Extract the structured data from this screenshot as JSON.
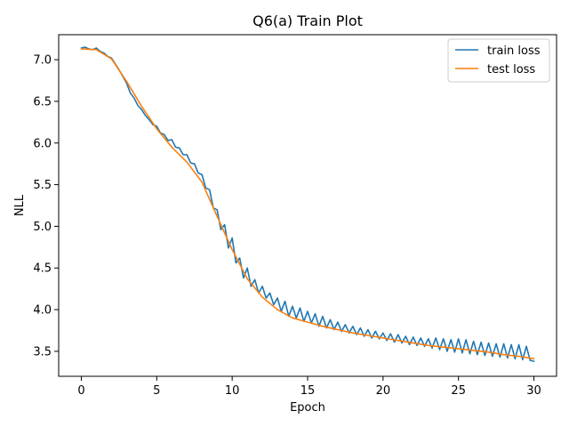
{
  "chart_data": {
    "type": "line",
    "title": "Q6(a) Train Plot",
    "xlabel": "Epoch",
    "ylabel": "NLL",
    "xlim": [
      -1.5,
      31.5
    ],
    "ylim": [
      3.2,
      7.3
    ],
    "xticks": [
      0,
      5,
      10,
      15,
      20,
      25,
      30
    ],
    "yticks": [
      3.5,
      4.0,
      4.5,
      5.0,
      5.5,
      6.0,
      6.5,
      7.0
    ],
    "xtick_labels": [
      "0",
      "5",
      "10",
      "15",
      "20",
      "25",
      "30"
    ],
    "ytick_labels": [
      "3.5",
      "4.0",
      "4.5",
      "5.0",
      "5.5",
      "6.0",
      "6.5",
      "7.0"
    ],
    "grid": false,
    "legend": "top-right",
    "series": [
      {
        "name": "train loss",
        "color": "#1f77b4",
        "x": [
          0,
          0.25,
          0.5,
          0.75,
          1.0,
          1.25,
          1.5,
          1.75,
          2.0,
          2.25,
          2.5,
          2.75,
          3.0,
          3.25,
          3.5,
          3.75,
          4.0,
          4.25,
          4.5,
          4.75,
          5.0,
          5.25,
          5.5,
          5.75,
          6.0,
          6.25,
          6.5,
          6.75,
          7.0,
          7.25,
          7.5,
          7.75,
          8.0,
          8.25,
          8.5,
          8.75,
          9.0,
          9.25,
          9.5,
          9.75,
          10.0,
          10.25,
          10.5,
          10.75,
          11.0,
          11.25,
          11.5,
          11.75,
          12.0,
          12.25,
          12.5,
          12.75,
          13.0,
          13.25,
          13.5,
          13.75,
          14.0,
          14.25,
          14.5,
          14.75,
          15.0,
          15.25,
          15.5,
          15.75,
          16.0,
          16.25,
          16.5,
          16.75,
          17.0,
          17.25,
          17.5,
          17.75,
          18.0,
          18.25,
          18.5,
          18.75,
          19.0,
          19.25,
          19.5,
          19.75,
          20.0,
          20.25,
          20.5,
          20.75,
          21.0,
          21.25,
          21.5,
          21.75,
          22.0,
          22.25,
          22.5,
          22.75,
          23.0,
          23.25,
          23.5,
          23.75,
          24.0,
          24.25,
          24.5,
          24.75,
          25.0,
          25.25,
          25.5,
          25.75,
          26.0,
          26.25,
          26.5,
          26.75,
          27.0,
          27.25,
          27.5,
          27.75,
          28.0,
          28.25,
          28.5,
          28.75,
          29.0,
          29.25,
          29.5,
          29.75,
          30.0
        ],
        "values": [
          7.14,
          7.15,
          7.13,
          7.12,
          7.14,
          7.1,
          7.08,
          7.04,
          7.02,
          6.95,
          6.88,
          6.8,
          6.72,
          6.6,
          6.54,
          6.45,
          6.4,
          6.33,
          6.28,
          6.22,
          6.2,
          6.12,
          6.1,
          6.03,
          6.04,
          5.95,
          5.94,
          5.86,
          5.86,
          5.76,
          5.75,
          5.64,
          5.62,
          5.46,
          5.44,
          5.22,
          5.2,
          4.96,
          5.02,
          4.74,
          4.86,
          4.56,
          4.62,
          4.38,
          4.5,
          4.28,
          4.36,
          4.2,
          4.28,
          4.14,
          4.2,
          4.06,
          4.14,
          3.98,
          4.1,
          3.92,
          4.04,
          3.9,
          4.02,
          3.86,
          3.98,
          3.84,
          3.95,
          3.8,
          3.92,
          3.78,
          3.88,
          3.76,
          3.85,
          3.74,
          3.82,
          3.72,
          3.8,
          3.7,
          3.78,
          3.68,
          3.76,
          3.66,
          3.74,
          3.65,
          3.72,
          3.63,
          3.71,
          3.61,
          3.7,
          3.6,
          3.68,
          3.58,
          3.67,
          3.57,
          3.66,
          3.56,
          3.65,
          3.54,
          3.66,
          3.52,
          3.65,
          3.5,
          3.64,
          3.49,
          3.65,
          3.48,
          3.64,
          3.47,
          3.62,
          3.46,
          3.61,
          3.45,
          3.6,
          3.44,
          3.59,
          3.43,
          3.59,
          3.42,
          3.58,
          3.41,
          3.58,
          3.4,
          3.56,
          3.39,
          3.38
        ]
      },
      {
        "name": "test loss",
        "color": "#ff7f0e",
        "x": [
          0,
          1,
          2,
          3,
          4,
          5,
          6,
          7,
          8,
          9,
          10,
          11,
          12,
          13,
          14,
          15,
          16,
          17,
          18,
          19,
          20,
          21,
          22,
          23,
          24,
          25,
          26,
          27,
          28,
          29,
          30
        ],
        "values": [
          7.13,
          7.12,
          7.01,
          6.74,
          6.44,
          6.17,
          5.95,
          5.77,
          5.53,
          5.12,
          4.72,
          4.37,
          4.15,
          4.0,
          3.9,
          3.85,
          3.8,
          3.76,
          3.72,
          3.69,
          3.66,
          3.63,
          3.6,
          3.57,
          3.55,
          3.53,
          3.51,
          3.49,
          3.46,
          3.44,
          3.41
        ]
      }
    ]
  }
}
